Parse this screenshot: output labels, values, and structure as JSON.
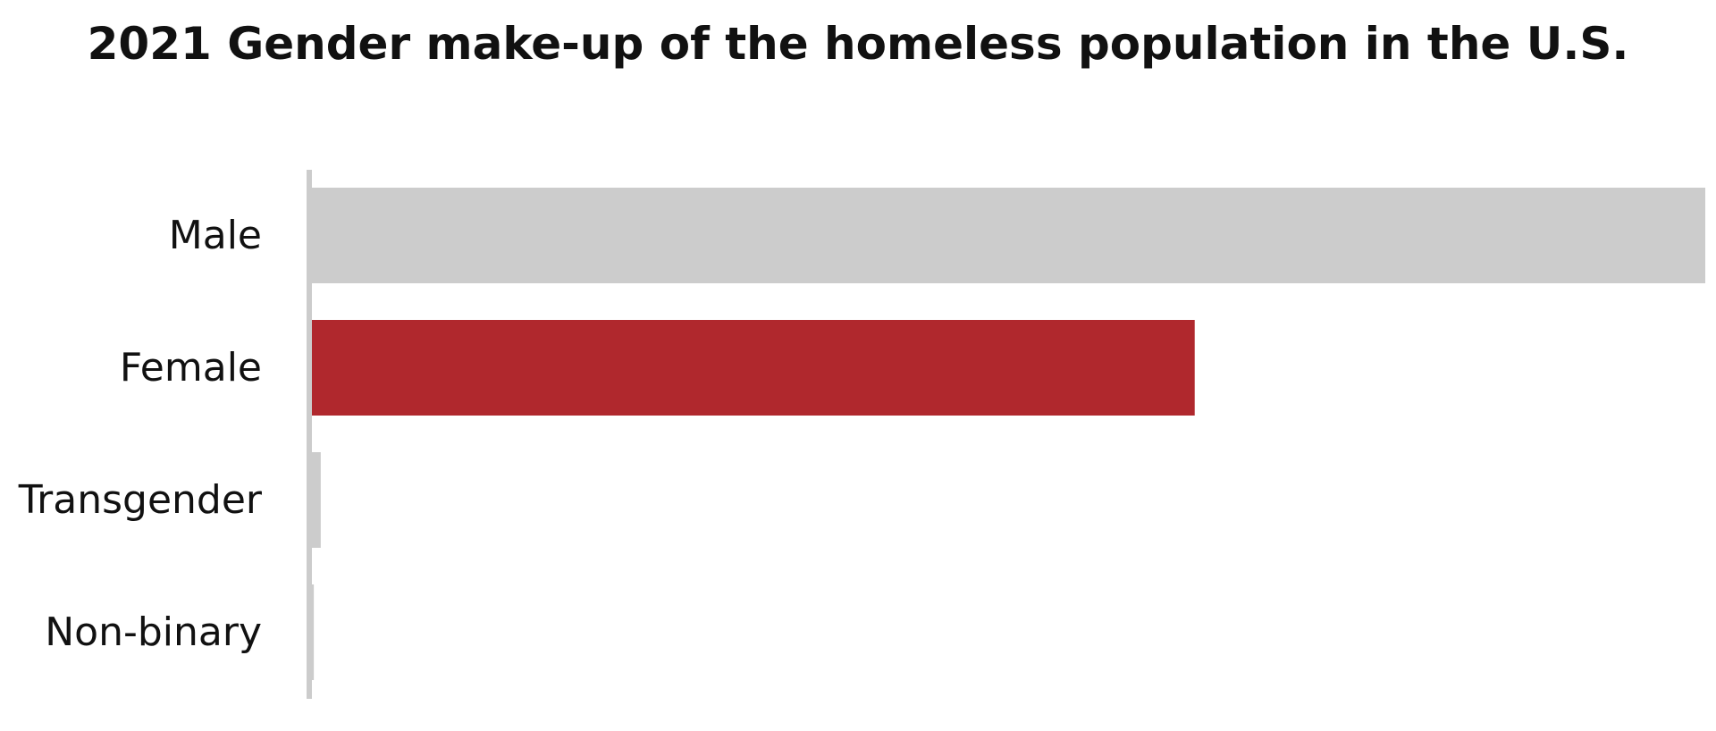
{
  "chart_data": {
    "type": "bar",
    "orientation": "horizontal",
    "title": "2021 Gender make-up of the homeless population in the U.S.",
    "xlabel": "",
    "ylabel": "",
    "categories": [
      "Male",
      "Female",
      "Transgender",
      "Non-binary"
    ],
    "values": [
      60.7,
      38.5,
      0.5,
      0.2
    ],
    "xlim": [
      0,
      60.7
    ],
    "grid": false,
    "legend": "none",
    "colors": {
      "default": "#cccccc",
      "highlight": "#b0282d",
      "axis": "#cccccc"
    },
    "highlight_category": "Female"
  }
}
